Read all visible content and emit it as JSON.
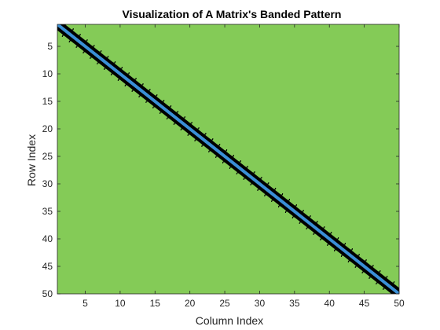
{
  "chart_data": {
    "type": "heatmap",
    "title": "Visualization of A Matrix's Banded Pattern",
    "xlabel": "Column Index",
    "ylabel": "Row Index",
    "xlim": [
      1,
      50
    ],
    "ylim": [
      1,
      50
    ],
    "y_reversed": true,
    "xticks": [
      5,
      10,
      15,
      20,
      25,
      30,
      35,
      40,
      45,
      50
    ],
    "yticks": [
      5,
      10,
      15,
      20,
      25,
      30,
      35,
      40,
      45,
      50
    ],
    "matrix_size": [
      50,
      50
    ],
    "band": {
      "lower": 1,
      "upper": 1
    },
    "colors": {
      "zero_background": "#84cb57",
      "band_outline": "#000000",
      "main_diagonal": "#3a8fd6",
      "marker": "#f2e8c8"
    }
  }
}
